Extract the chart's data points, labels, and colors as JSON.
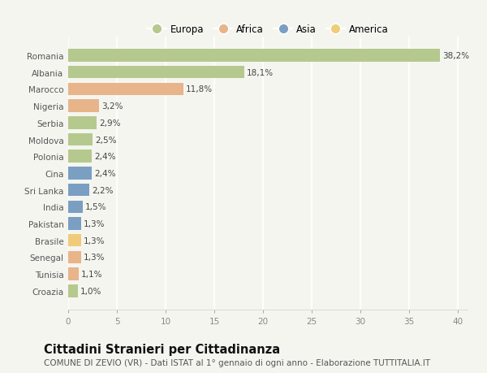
{
  "countries": [
    "Romania",
    "Albania",
    "Marocco",
    "Nigeria",
    "Serbia",
    "Moldova",
    "Polonia",
    "Cina",
    "Sri Lanka",
    "India",
    "Pakistan",
    "Brasile",
    "Senegal",
    "Tunisia",
    "Croazia"
  ],
  "values": [
    38.2,
    18.1,
    11.8,
    3.2,
    2.9,
    2.5,
    2.4,
    2.4,
    2.2,
    1.5,
    1.3,
    1.3,
    1.3,
    1.1,
    1.0
  ],
  "labels": [
    "38,2%",
    "18,1%",
    "11,8%",
    "3,2%",
    "2,9%",
    "2,5%",
    "2,4%",
    "2,4%",
    "2,2%",
    "1,5%",
    "1,3%",
    "1,3%",
    "1,3%",
    "1,1%",
    "1,0%"
  ],
  "continents": [
    "Europa",
    "Europa",
    "Africa",
    "Africa",
    "Europa",
    "Europa",
    "Europa",
    "Asia",
    "Asia",
    "Asia",
    "Asia",
    "America",
    "Africa",
    "Africa",
    "Europa"
  ],
  "continent_colors": {
    "Europa": "#b5c98e",
    "Africa": "#e8b48a",
    "Asia": "#7a9fc2",
    "America": "#f0cc7a"
  },
  "legend_order": [
    "Europa",
    "Africa",
    "Asia",
    "America"
  ],
  "title": "Cittadini Stranieri per Cittadinanza",
  "subtitle": "COMUNE DI ZEVIO (VR) - Dati ISTAT al 1° gennaio di ogni anno - Elaborazione TUTTITALIA.IT",
  "xlim": [
    0,
    41
  ],
  "xticks": [
    0,
    5,
    10,
    15,
    20,
    25,
    30,
    35,
    40
  ],
  "background_color": "#f5f5f0",
  "grid_color": "#ffffff",
  "bar_height": 0.75,
  "label_fontsize": 7.5,
  "title_fontsize": 10.5,
  "subtitle_fontsize": 7.5,
  "ytick_fontsize": 7.5,
  "xtick_fontsize": 7.5,
  "legend_fontsize": 8.5
}
